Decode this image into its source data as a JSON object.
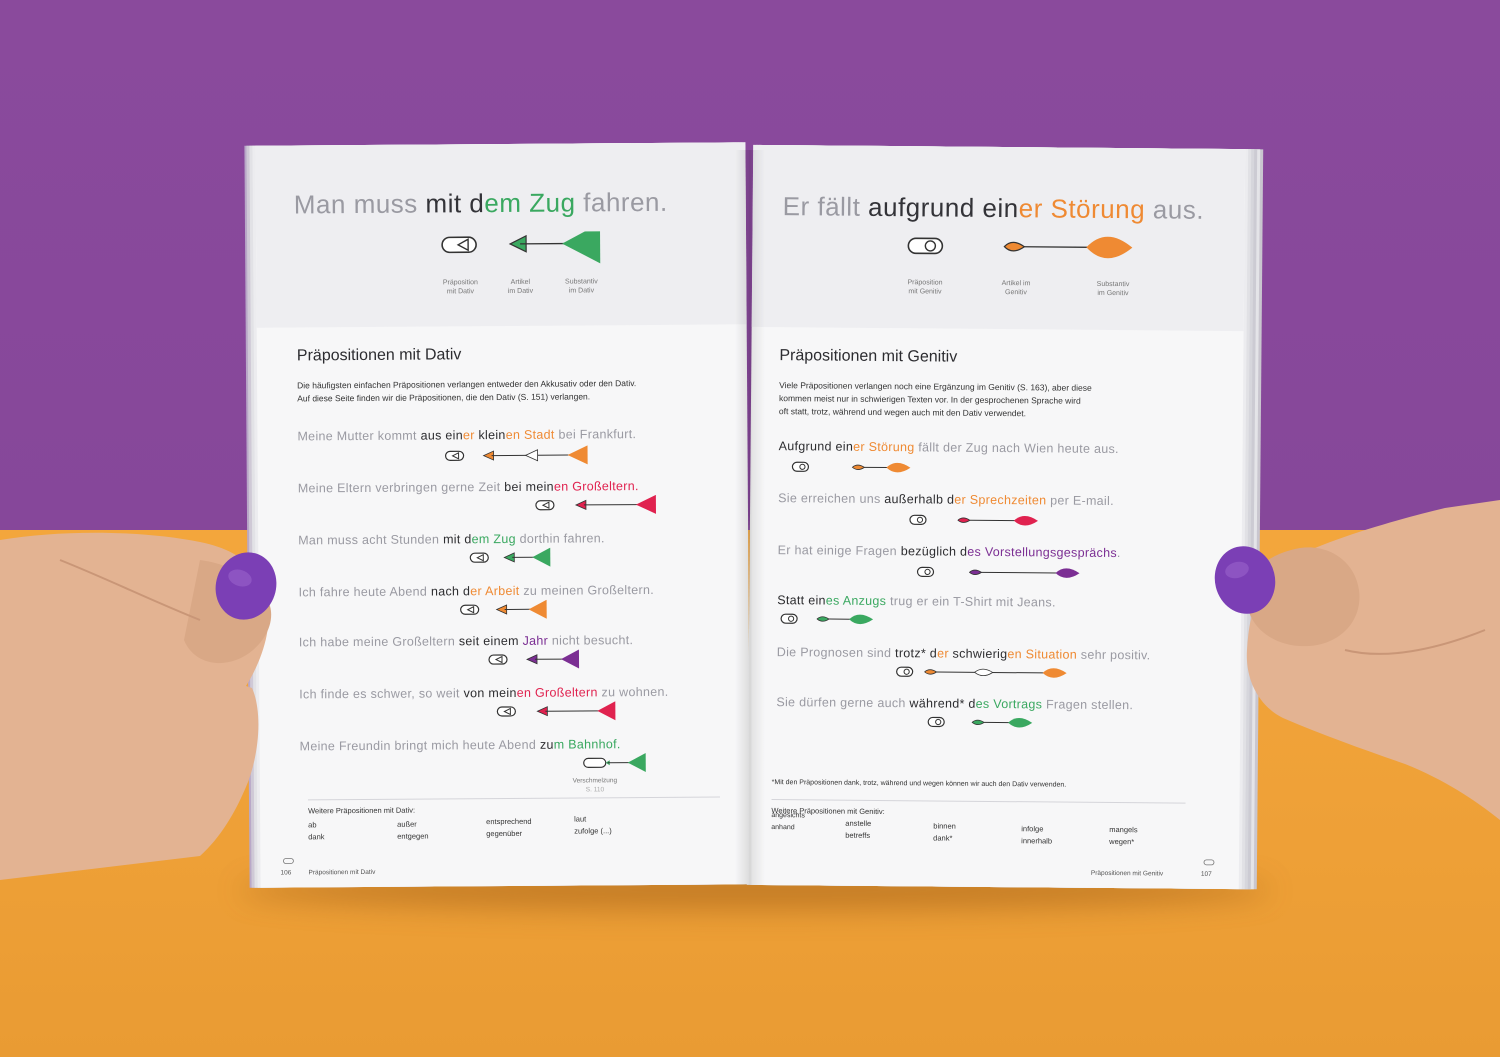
{
  "colors": {
    "wall": "#8a4a9c",
    "table": "#f2a43a",
    "dativ_green": "#3aa860",
    "genitiv_orange": "#ef8a33",
    "red": "#e0224f",
    "purple": "#7b2e93",
    "nail": "#7b3fb5"
  },
  "left_page": {
    "hero": {
      "w1": "Man muss ",
      "w2": "mit",
      "w3": " d",
      "w4": "em",
      "w5": " ",
      "w6": "Zug",
      "w7": " fahren."
    },
    "captions": {
      "prep_1": "Präposition",
      "prep_2": "mit Dativ",
      "art_1": "Artikel",
      "art_2": "im Dativ",
      "noun_1": "Substantiv",
      "noun_2": "im Dativ"
    },
    "section_title": "Präpositionen mit Dativ",
    "intro_1": "Die häufigsten einfachen Präpositionen verlangen entweder den Akkusativ oder den Dativ.",
    "intro_2": "Auf diese Seite finden wir die Präpositionen, die den Dativ (S. 151) verlangen.",
    "examples": [
      {
        "pre": "Meine Mutter kommt ",
        "prep": "aus",
        "mid": " ein",
        "art_end": "er",
        "adj": " klein",
        "adj_end": "en",
        "noun": " Stadt",
        "post": " bei Frankfurt."
      },
      {
        "pre": "Meine Eltern verbringen gerne Zeit ",
        "prep": "bei",
        "mid": " mein",
        "art_end": "en",
        "adj": "",
        "adj_end": "",
        "noun": " Großeltern.",
        "post": ""
      },
      {
        "pre": "Man muss acht Stunden ",
        "prep": "mit",
        "mid": " d",
        "art_end": "em",
        "adj": "",
        "adj_end": "",
        "noun": " Zug",
        "post": " dorthin fahren."
      },
      {
        "pre": "Ich fahre heute Abend ",
        "prep": "nach",
        "mid": " d",
        "art_end": "er",
        "adj": "",
        "adj_end": "",
        "noun": " Arbeit",
        "post": " zu meinen Großeltern."
      },
      {
        "pre": "Ich habe meine Großeltern ",
        "prep": "seit",
        "mid": " ein",
        "art_end": "em",
        "adj": "",
        "adj_end": "",
        "noun": " Jahr",
        "post": " nicht besucht."
      },
      {
        "pre": "Ich finde es schwer, so weit ",
        "prep": "von",
        "mid": " mein",
        "art_end": "en",
        "adj": "",
        "adj_end": "",
        "noun": " Großeltern",
        "post": " zu wohnen."
      },
      {
        "pre": "Meine Freundin bringt mich heute Abend ",
        "prep": "zu",
        "mid": "",
        "art_end": "m",
        "adj": "",
        "adj_end": "",
        "noun": " Bahnhof.",
        "post": ""
      }
    ],
    "fusion_label": "Verschmelzung",
    "fusion_ref": "S. 110",
    "more_title": "Weitere Präpositionen mit Dativ:",
    "more": [
      "ab",
      "dank",
      "außer",
      "entgegen",
      "entsprechend",
      "gegenüber",
      "laut",
      "zufolge (...)"
    ],
    "page_number": "106",
    "running_head": "Präpositionen mit Dativ"
  },
  "right_page": {
    "hero": {
      "w1": "Er fällt ",
      "w2": "aufgrund",
      "w3": " ein",
      "w4": "er",
      "w5": " ",
      "w6": "Störung",
      "w7": " aus."
    },
    "captions": {
      "prep_1": "Präposition",
      "prep_2": "mit Genitiv",
      "art_1": "Artikel im",
      "art_2": "Genitiv",
      "noun_1": "Substantiv",
      "noun_2": "im Genitiv"
    },
    "section_title": "Präpositionen mit Genitiv",
    "intro_1": "Viele Präpositionen verlangen noch eine Ergänzung im Genitiv (S. 163), aber diese",
    "intro_2": "kommen meist nur in schwierigen Texten vor. In der gesprochenen Sprache wird",
    "intro_3": "oft statt, trotz, während und wegen auch mit den Dativ verwendet.",
    "examples": [
      {
        "pre": "",
        "prep": "Aufgrund",
        "mid": " ein",
        "art_end": "er",
        "adj": "",
        "adj_end": "",
        "noun": " Störung",
        "post": " fällt der Zug nach Wien heute aus."
      },
      {
        "pre": "Sie erreichen uns ",
        "prep": "außerhalb",
        "mid": " d",
        "art_end": "er",
        "adj": "",
        "adj_end": "",
        "noun": " Sprechzeiten",
        "post": " per E-mail."
      },
      {
        "pre": "Er hat einige Fragen ",
        "prep": "bezüglich",
        "mid": " d",
        "art_end": "es",
        "adj": "",
        "adj_end": "",
        "noun": " Vorstellungsgesprächs",
        "post": "."
      },
      {
        "pre": "",
        "prep": "Statt",
        "mid": " ein",
        "art_end": "es",
        "adj": "",
        "adj_end": "",
        "noun": " Anzugs",
        "post": " trug er ein T-Shirt mit Jeans."
      },
      {
        "pre": "Die Prognosen sind ",
        "prep": "trotz*",
        "mid": " d",
        "art_end": "er",
        "adj": " schwierig",
        "adj_end": "en",
        "noun": " Situation",
        "post": " sehr positiv."
      },
      {
        "pre": "Sie dürfen gerne auch ",
        "prep": "während*",
        "mid": " d",
        "art_end": "es",
        "adj": "",
        "adj_end": "",
        "noun": " Vortrags",
        "post": " Fragen stellen."
      }
    ],
    "footnote": "*Mit den Präpositionen dank, trotz, während und wegen können wir auch den Dativ verwenden.",
    "more_title": "Weitere Präpositionen mit Genitiv:",
    "more": [
      "angesichts",
      "anhand",
      "anstelle",
      "betreffs",
      "binnen",
      "dank*",
      "infolge",
      "innerhalb",
      "mangels",
      "wegen*"
    ],
    "page_number": "107",
    "running_head": "Präpositionen mit Genitiv"
  }
}
